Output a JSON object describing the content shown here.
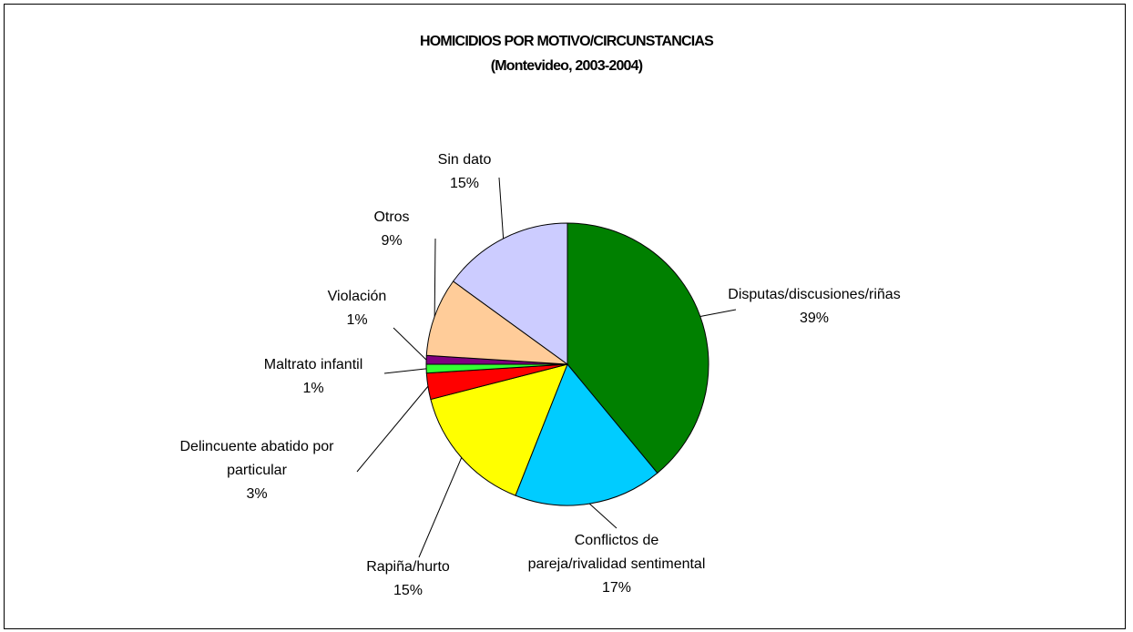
{
  "chart_data": {
    "type": "pie",
    "title": "HOMICIDIOS POR MOTIVO/CIRCUNSTANCIAS",
    "subtitle": "(Montevideo, 2003-2004)",
    "categories": [
      "Disputas/discusiones/riñas",
      "Conflictos de pareja/rivalidad sentimental",
      "Rapiña/hurto",
      "Delincuente abatido por particular",
      "Maltrato infantil",
      "Violación",
      "Otros",
      "Sin dato"
    ],
    "values": [
      39,
      17,
      15,
      3,
      1,
      1,
      9,
      15
    ],
    "value_labels": [
      "39%",
      "17%",
      "15%",
      "3%",
      "1%",
      "1%",
      "9%",
      "15%"
    ],
    "colors": [
      "#008000",
      "#00ccff",
      "#ffff00",
      "#ff0000",
      "#33ff33",
      "#800080",
      "#ffcc99",
      "#ccccff"
    ]
  }
}
